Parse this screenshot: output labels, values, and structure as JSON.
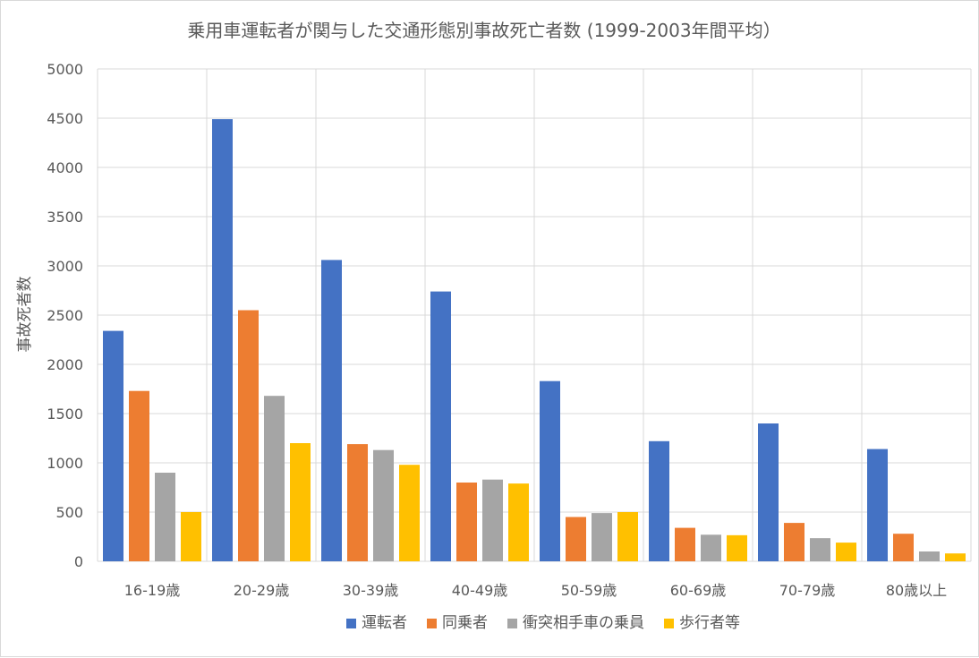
{
  "chart_data": {
    "type": "bar",
    "title": "乗用車運転者が関与した交通形態別事故死亡者数 (1999-2003年間平均）",
    "xlabel": "",
    "ylabel": "事故死者数",
    "ylim": [
      0,
      5000
    ],
    "yticks": [
      0,
      500,
      1000,
      1500,
      2000,
      2500,
      3000,
      3500,
      4000,
      4500,
      5000
    ],
    "grid": true,
    "legend_position": "bottom",
    "categories": [
      "16-19歳",
      "20-29歳",
      "30-39歳",
      "40-49歳",
      "50-59歳",
      "60-69歳",
      "70-79歳",
      "80歳以上"
    ],
    "series": [
      {
        "name": "運転者",
        "color": "#4472c4",
        "values": [
          2340,
          4490,
          3060,
          2740,
          1830,
          1220,
          1400,
          1140
        ]
      },
      {
        "name": "同乗者",
        "color": "#ed7d31",
        "values": [
          1730,
          2550,
          1190,
          800,
          450,
          340,
          390,
          280
        ]
      },
      {
        "name": "衝突相手車の乗員",
        "color": "#a5a5a5",
        "values": [
          900,
          1680,
          1130,
          830,
          490,
          270,
          235,
          100
        ]
      },
      {
        "name": "歩行者等",
        "color": "#ffc000",
        "values": [
          500,
          1200,
          980,
          790,
          500,
          265,
          190,
          80
        ]
      }
    ]
  }
}
